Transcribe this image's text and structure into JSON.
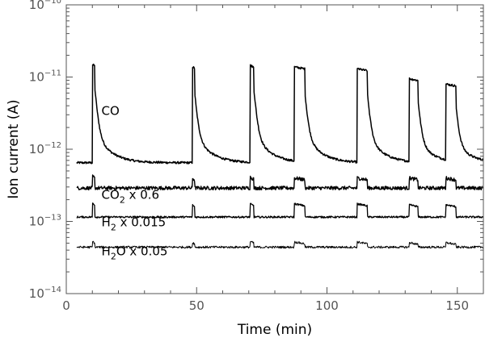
{
  "chart_data": {
    "type": "line",
    "title": "",
    "xlabel": "Time (min)",
    "ylabel": "Ion current (A)",
    "xlim": [
      0,
      160
    ],
    "ylim": [
      1e-14,
      1e-10
    ],
    "y_scale": "log",
    "grid": false,
    "x_ticks": [
      {
        "value": 0,
        "label": "0"
      },
      {
        "value": 50,
        "label": "50"
      },
      {
        "value": 100,
        "label": "100"
      },
      {
        "value": 150,
        "label": "150"
      }
    ],
    "y_ticks": [
      {
        "value": 1e-14,
        "base": "10",
        "exp": "−14"
      },
      {
        "value": 1e-13,
        "base": "10",
        "exp": "−13"
      },
      {
        "value": 1e-12,
        "base": "10",
        "exp": "−12"
      },
      {
        "value": 1e-11,
        "base": "10",
        "exp": "−11"
      },
      {
        "value": 1e-10,
        "base": "10",
        "exp": "−10"
      }
    ],
    "series": [
      {
        "name": "CO",
        "label_parts": [
          "CO"
        ],
        "label_anchor": {
          "x": 13.5,
          "y": 3e-12
        },
        "baseline": 6.5e-13,
        "noise": 0.03,
        "stroke_width": 1.5,
        "pulses": [
          {
            "start": 10.0,
            "end": 11.0,
            "peak": 1.5e-11
          },
          {
            "start": 48.3,
            "end": 49.2,
            "peak": 1.4e-11
          },
          {
            "start": 70.5,
            "end": 72.0,
            "peak": 1.45e-11
          },
          {
            "start": 87.5,
            "end": 91.5,
            "peak": 1.38e-11
          },
          {
            "start": 111.5,
            "end": 115.5,
            "peak": 1.3e-11
          },
          {
            "start": 131.5,
            "end": 135.0,
            "peak": 9.5e-12
          },
          {
            "start": 145.5,
            "end": 149.5,
            "peak": 8e-12
          }
        ]
      },
      {
        "name": "CO2 x 0.6",
        "label_parts": [
          "CO",
          "2",
          " x 0.6"
        ],
        "label_anchor": {
          "x": 13.5,
          "y": 2.05e-13
        },
        "baseline": 2.9e-13,
        "noise": 0.05,
        "stroke_width": 1.4,
        "pulses": [
          {
            "start": 10.0,
            "end": 11.0,
            "peak": 4.2e-13
          },
          {
            "start": 48.3,
            "end": 49.2,
            "peak": 4e-13
          },
          {
            "start": 70.5,
            "end": 72.0,
            "peak": 4.1e-13
          },
          {
            "start": 87.5,
            "end": 91.5,
            "peak": 4e-13
          },
          {
            "start": 111.5,
            "end": 115.5,
            "peak": 4e-13
          },
          {
            "start": 131.5,
            "end": 135.0,
            "peak": 4e-13
          },
          {
            "start": 145.5,
            "end": 149.5,
            "peak": 4e-13
          }
        ]
      },
      {
        "name": "H2 x 0.015",
        "label_parts": [
          "H",
          "2",
          " x 0.015"
        ],
        "label_anchor": {
          "x": 13.5,
          "y": 8.6e-14
        },
        "baseline": 1.15e-13,
        "noise": 0.025,
        "stroke_width": 1.3,
        "pulses": [
          {
            "start": 10.0,
            "end": 11.0,
            "peak": 1.8e-13
          },
          {
            "start": 48.3,
            "end": 49.2,
            "peak": 1.7e-13
          },
          {
            "start": 70.5,
            "end": 72.0,
            "peak": 1.75e-13
          },
          {
            "start": 87.5,
            "end": 91.5,
            "peak": 1.75e-13
          },
          {
            "start": 111.5,
            "end": 115.5,
            "peak": 1.75e-13
          },
          {
            "start": 131.5,
            "end": 135.0,
            "peak": 1.7e-13
          },
          {
            "start": 145.5,
            "end": 149.5,
            "peak": 1.7e-13
          }
        ]
      },
      {
        "name": "H2O x 0.05",
        "label_parts": [
          "H",
          "2",
          "O x 0.05"
        ],
        "label_anchor": {
          "x": 13.5,
          "y": 3.4e-14
        },
        "baseline": 4.4e-14,
        "noise": 0.03,
        "stroke_width": 1.0,
        "pulses": [
          {
            "start": 10.0,
            "end": 11.0,
            "peak": 5.3e-14
          },
          {
            "start": 48.3,
            "end": 49.2,
            "peak": 5.2e-14
          },
          {
            "start": 70.5,
            "end": 72.0,
            "peak": 5.3e-14
          },
          {
            "start": 87.5,
            "end": 91.5,
            "peak": 5.2e-14
          },
          {
            "start": 111.5,
            "end": 115.5,
            "peak": 5.2e-14
          },
          {
            "start": 131.5,
            "end": 135.0,
            "peak": 5.1e-14
          },
          {
            "start": 145.5,
            "end": 149.5,
            "peak": 5.1e-14
          }
        ]
      }
    ]
  }
}
